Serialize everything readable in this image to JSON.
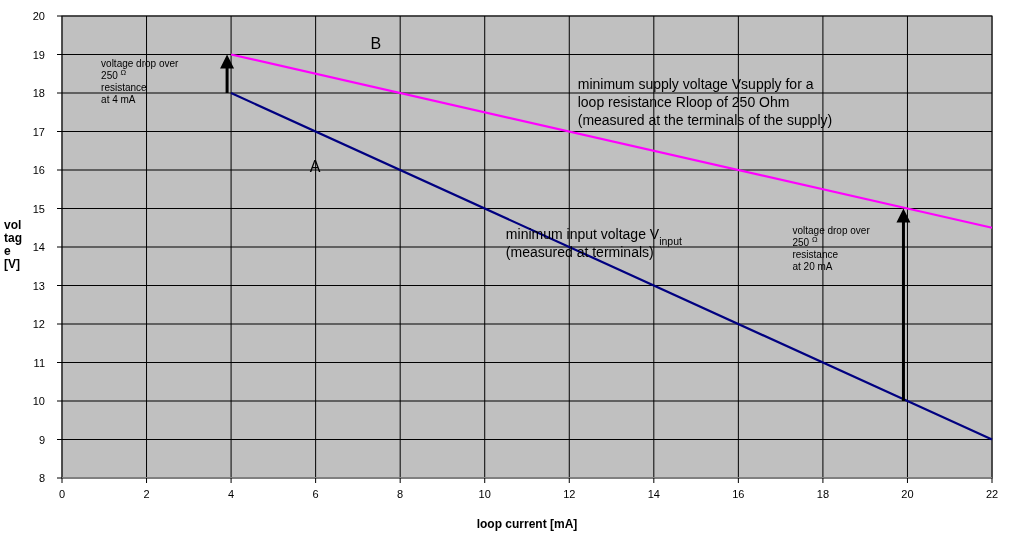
{
  "chart_data": {
    "type": "line",
    "xlabel": "loop current [mA]",
    "ylabel": "voltage [V]",
    "xlim": [
      0,
      22
    ],
    "xticks": [
      0,
      2,
      4,
      6,
      8,
      10,
      12,
      14,
      16,
      18,
      20,
      22
    ],
    "ylim": [
      8,
      20
    ],
    "yticks": [
      8,
      9,
      10,
      11,
      12,
      13,
      14,
      15,
      16,
      17,
      18,
      19,
      20
    ],
    "grid": true,
    "marker": "none",
    "line_style": "solid",
    "series": [
      {
        "color": "#000080",
        "x": [
          4,
          20,
          22
        ],
        "values": [
          18,
          10,
          9
        ]
      },
      {
        "color": "#ff00ff",
        "x": [
          4,
          20,
          22
        ],
        "values": [
          19,
          15,
          14.5
        ]
      }
    ],
    "annotations": [
      "voltage drop over\n250 $^{Ω}$\nresistance\nat 4 mA",
      "voltage drop over\n250 $^{Ω}$\nresistance\nat 20 mA",
      {
        "text": "A",
        "x": 6,
        "y": 17
      },
      "B",
      "minimum supply voltage Vsupply for a\nloop resistance Rloop of 250 Ohm\n(measured at the terminals of the supply)",
      "minimum input voltage V$_{input}$\n(measured at terminals)"
    ]
  }
}
